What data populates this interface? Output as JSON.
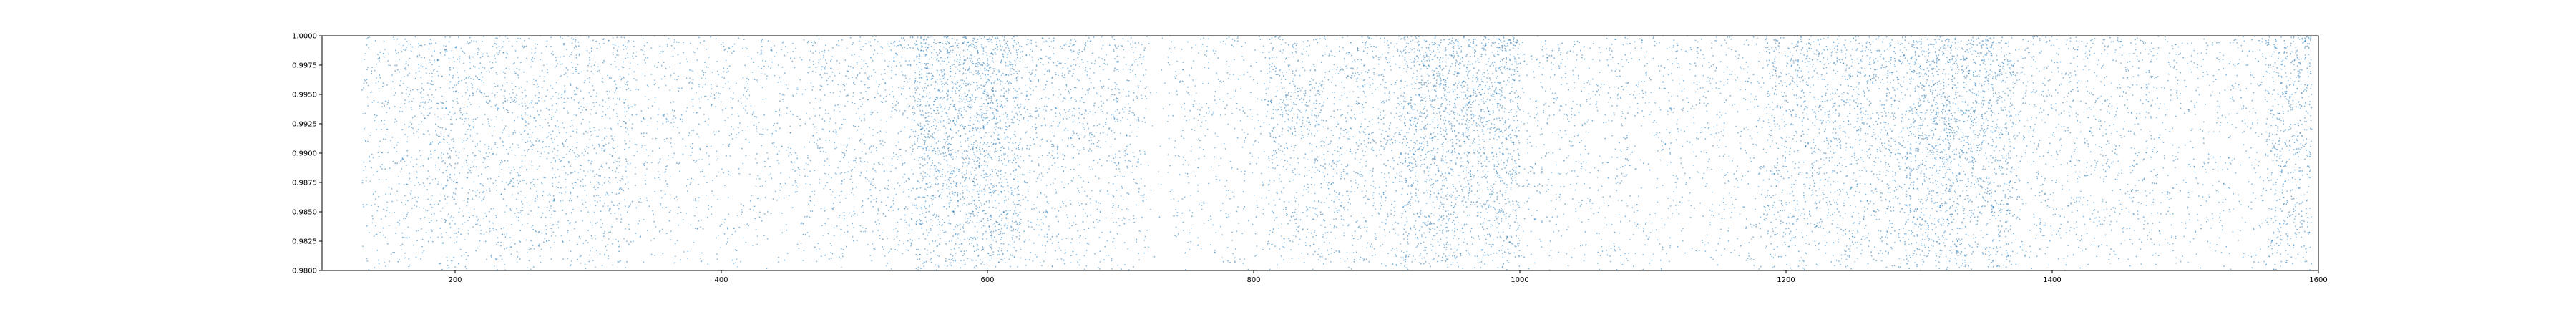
{
  "chart_data": {
    "type": "scatter",
    "title": "",
    "xlabel": "",
    "ylabel": "",
    "xlim": [
      100,
      1600
    ],
    "ylim": [
      0.98,
      1.0
    ],
    "grid": false,
    "marker_color": "#1f77b4",
    "x_ticks": [
      200,
      400,
      600,
      800,
      1000,
      1200,
      1400,
      1600
    ],
    "y_ticks": [
      0.98,
      0.9825,
      0.985,
      0.9875,
      0.99,
      0.9925,
      0.995,
      0.9975,
      1.0
    ],
    "x_tick_labels": [
      "200",
      "400",
      "600",
      "800",
      "1000",
      "1200",
      "1400",
      "1600"
    ],
    "y_tick_labels": [
      "0.9800",
      "0.9825",
      "0.9850",
      "0.9875",
      "0.9900",
      "0.9925",
      "0.9950",
      "0.9975",
      "1.0000"
    ],
    "series": [
      {
        "density_profile": [
          {
            "x": [
              130,
              160
            ],
            "density": 0.7
          },
          {
            "x": [
              160,
              330
            ],
            "density": 1.0
          },
          {
            "x": [
              330,
              470
            ],
            "density": 0.55
          },
          {
            "x": [
              470,
              545
            ],
            "density": 0.8
          },
          {
            "x": [
              545,
              625
            ],
            "density": 2.2
          },
          {
            "x": [
              625,
              720
            ],
            "density": 0.9
          },
          {
            "x": [
              720,
              735
            ],
            "density": 0.1
          },
          {
            "x": [
              735,
              810
            ],
            "density": 0.45
          },
          {
            "x": [
              810,
              910
            ],
            "density": 1.1
          },
          {
            "x": [
              910,
              1000
            ],
            "density": 2.0
          },
          {
            "x": [
              1000,
              1185
            ],
            "density": 0.55
          },
          {
            "x": [
              1185,
              1290
            ],
            "density": 1.3
          },
          {
            "x": [
              1290,
              1370
            ],
            "density": 2.0
          },
          {
            "x": [
              1370,
              1480
            ],
            "density": 0.75
          },
          {
            "x": [
              1480,
              1560
            ],
            "density": 0.5
          },
          {
            "x": [
              1560,
              1595
            ],
            "density": 1.6
          }
        ]
      }
    ]
  }
}
